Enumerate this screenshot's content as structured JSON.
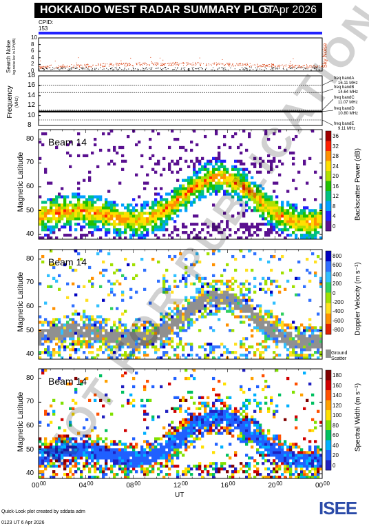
{
  "header": {
    "title": "HOKKAIDO WEST RADAR SUMMARY PLOT",
    "date": "5 Apr 2026"
  },
  "cpid": {
    "label": "CPID:",
    "value": "153"
  },
  "noise_panel": {
    "ylabel_main": "Search Noise",
    "ylabel_sub": "log-noise lev. in 10^(dB)",
    "right_label": "Sky Noise",
    "yticks": [
      "10",
      "8",
      "6",
      "4",
      "2",
      "0"
    ]
  },
  "freq_panel": {
    "ylabel_main": "Frequency",
    "ylabel_sub": "(MHz)",
    "yticks": [
      "18",
      "16",
      "14",
      "12",
      "10",
      "8"
    ],
    "bands": [
      {
        "name": "freq bandA",
        "mhz": "16.11 MHz"
      },
      {
        "name": "freq bandB",
        "mhz": "14.64 MHz"
      },
      {
        "name": "freq bandC",
        "mhz": "11.07 MHz"
      },
      {
        "name": "freq bandD",
        "mhz": "10.80 MHz"
      },
      {
        "name": "freq bandE",
        "mhz": "9.11 MHz"
      }
    ]
  },
  "panels": [
    {
      "beam": "Beam 14",
      "ylabel": "Magnetic Latitude",
      "cbar_label": "Backscatter Power (dB)",
      "cbar_ticks": [
        "36",
        "32",
        "28",
        "24",
        "20",
        "16",
        "12",
        "8",
        "4",
        "0"
      ],
      "yticks": [
        "80",
        "70",
        "60",
        "50",
        "40"
      ]
    },
    {
      "beam": "Beam 14",
      "ylabel": "Magnetic Latitude",
      "cbar_label": "Doppler Velocity (m s⁻¹)",
      "cbar_ticks": [
        "800",
        "600",
        "400",
        "200",
        "0",
        "-200",
        "-400",
        "-600",
        "-800"
      ],
      "yticks": [
        "80",
        "70",
        "60",
        "50",
        "40"
      ],
      "ground_label_1": "Ground",
      "ground_label_2": "Scatter"
    },
    {
      "beam": "Beam 14",
      "ylabel": "Magnetic Latitude",
      "cbar_label": "Spectral Width (m s⁻¹)",
      "cbar_ticks": [
        "180",
        "160",
        "140",
        "120",
        "100",
        "80",
        "60",
        "40",
        "20",
        "0"
      ],
      "yticks": [
        "80",
        "70",
        "60",
        "50",
        "40"
      ]
    }
  ],
  "x_axis": {
    "ticks": [
      "00",
      "04",
      "08",
      "12",
      "16",
      "20",
      "00"
    ],
    "tick_sup": "00",
    "label": "UT"
  },
  "footer": {
    "line1": "Quick-Look plot created by sddata adm",
    "line2": "0123 UT  6 Apr 2026"
  },
  "logo": {
    "text": "ISEE"
  },
  "watermark": "NOT FOR PUBLICATION",
  "chart_data": [
    {
      "type": "scatter",
      "title": "Search Noise",
      "ylim": [
        0,
        10
      ],
      "xlim_hours_ut": [
        0,
        24
      ],
      "series": [
        {
          "name": "Sky Noise",
          "color": "#d94010"
        }
      ]
    },
    {
      "type": "line",
      "title": "Frequency",
      "ylabel": "(MHz)",
      "ylim": [
        8,
        18
      ],
      "xlim_hours_ut": [
        0,
        24
      ],
      "bands": [
        16.11,
        14.64,
        11.07,
        10.8,
        9.11
      ]
    },
    {
      "type": "heatmap",
      "title": "Beam 14",
      "ylabel": "Magnetic Latitude",
      "ylim": [
        38,
        84
      ],
      "colorbar": {
        "label": "Backscatter Power (dB)",
        "range": [
          0,
          38
        ]
      }
    },
    {
      "type": "heatmap",
      "title": "Beam 14",
      "ylabel": "Magnetic Latitude",
      "ylim": [
        38,
        84
      ],
      "colorbar": {
        "label": "Doppler Velocity (m s⁻¹)",
        "range": [
          -900,
          900
        ]
      }
    },
    {
      "type": "heatmap",
      "title": "Beam 14",
      "ylabel": "Magnetic Latitude",
      "ylim": [
        38,
        84
      ],
      "colorbar": {
        "label": "Spectral Width (m s⁻¹)",
        "range": [
          0,
          190
        ]
      }
    }
  ],
  "colors": {
    "cpid_bar": "#2222ff",
    "sky_noise": "#d94010",
    "title_bg": "#000000"
  }
}
